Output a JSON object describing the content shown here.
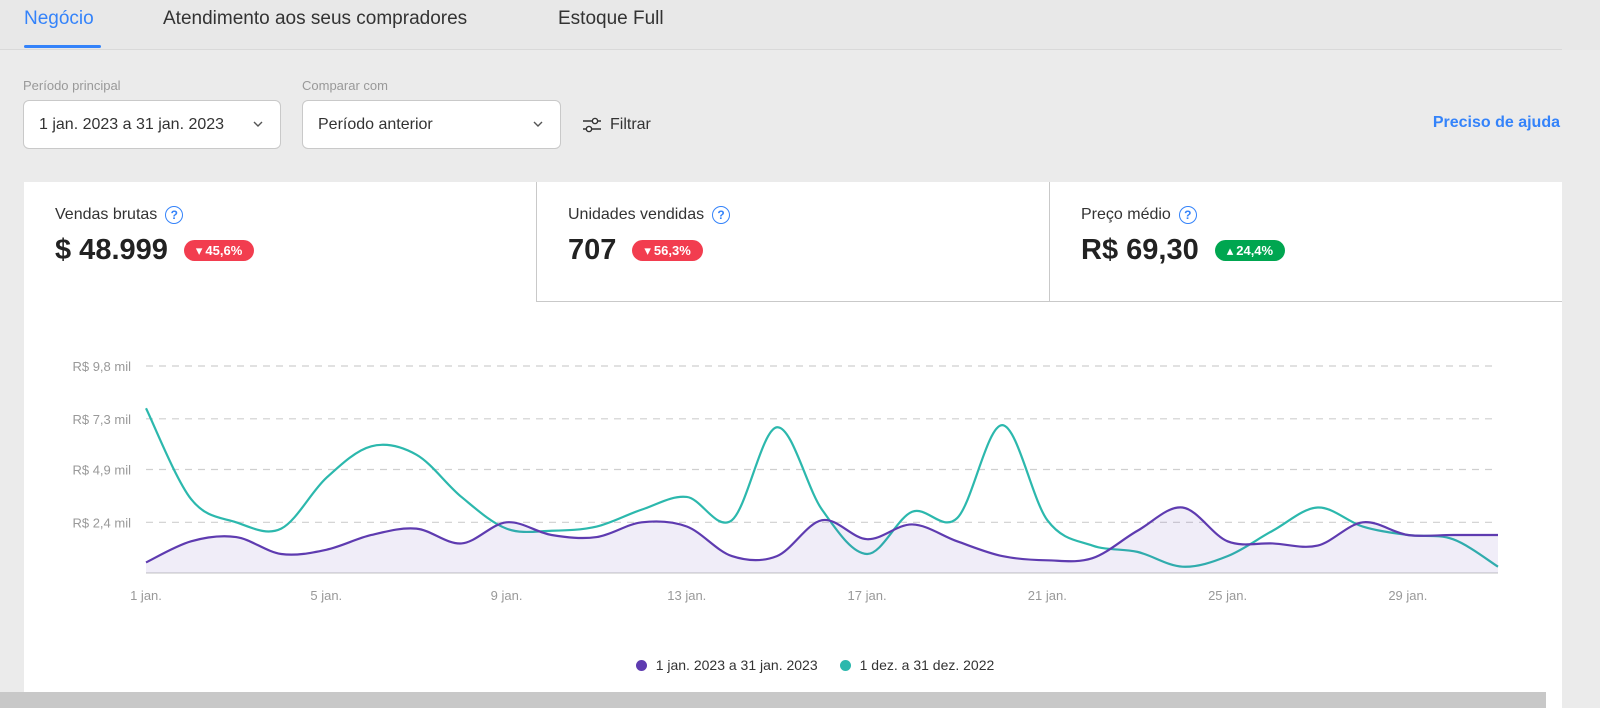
{
  "tabs": [
    {
      "label": "Negócio",
      "active": true
    },
    {
      "label": "Atendimento aos seus compradores",
      "active": false
    },
    {
      "label": "Estoque Full",
      "active": false
    }
  ],
  "filters": {
    "period_label": "Período principal",
    "period_value": "1 jan. 2023 a 31 jan. 2023",
    "compare_label": "Comparar com",
    "compare_value": "Período anterior",
    "filter_button": "Filtrar",
    "help_link": "Preciso de ajuda"
  },
  "metrics": [
    {
      "title": "Vendas brutas",
      "value": "$ 48.999",
      "change": "45,6%",
      "direction": "down",
      "selected": true
    },
    {
      "title": "Unidades vendidas",
      "value": "707",
      "change": "56,3%",
      "direction": "down",
      "selected": false
    },
    {
      "title": "Preço médio",
      "value": "R$ 69,30",
      "change": "24,4%",
      "direction": "up",
      "selected": false
    }
  ],
  "colors": {
    "accent": "#3483fa",
    "down": "#f23d4f",
    "up": "#00a650",
    "series_current": "#5e3bb0",
    "series_previous": "#2cb8ad"
  },
  "chart_data": {
    "type": "line",
    "y_ticks": [
      "R$ 9,8 mil",
      "R$ 7,3 mil",
      "R$ 4,9 mil",
      "R$ 2,4 mil"
    ],
    "y_tick_values": [
      9.8,
      7.3,
      4.9,
      2.4
    ],
    "ylim": [
      0,
      9.8
    ],
    "x_ticks": [
      "1 jan.",
      "5 jan.",
      "9 jan.",
      "13 jan.",
      "17 jan.",
      "21 jan.",
      "25 jan.",
      "29 jan."
    ],
    "x_tick_days": [
      1,
      5,
      9,
      13,
      17,
      21,
      25,
      29
    ],
    "x": [
      1,
      2,
      3,
      4,
      5,
      6,
      7,
      8,
      9,
      10,
      11,
      12,
      13,
      14,
      15,
      16,
      17,
      18,
      19,
      20,
      21,
      22,
      23,
      24,
      25,
      26,
      27,
      28,
      29,
      30,
      31
    ],
    "grid": true,
    "legend_position": "bottom",
    "series": [
      {
        "name": "1 jan. 2023 a 31 jan. 2023",
        "color": "#5e3bb0",
        "area": true,
        "values": [
          0.5,
          1.5,
          1.7,
          0.9,
          1.1,
          1.8,
          2.1,
          1.4,
          2.4,
          1.8,
          1.7,
          2.4,
          2.2,
          0.8,
          0.8,
          2.5,
          1.6,
          2.3,
          1.5,
          0.8,
          0.6,
          0.7,
          2.0,
          3.1,
          1.5,
          1.4,
          1.3,
          2.4,
          1.8,
          1.8,
          1.8
        ]
      },
      {
        "name": "1 dez. a 31 dez. 2022",
        "color": "#2cb8ad",
        "area": false,
        "values": [
          7.8,
          3.5,
          2.4,
          2.1,
          4.5,
          6.0,
          5.6,
          3.6,
          2.1,
          2.0,
          2.2,
          3.0,
          3.6,
          2.5,
          6.9,
          3.0,
          0.9,
          2.9,
          2.6,
          7.0,
          2.5,
          1.3,
          1.0,
          0.3,
          0.8,
          2.0,
          3.1,
          2.2,
          1.8,
          1.6,
          0.3
        ]
      }
    ]
  }
}
